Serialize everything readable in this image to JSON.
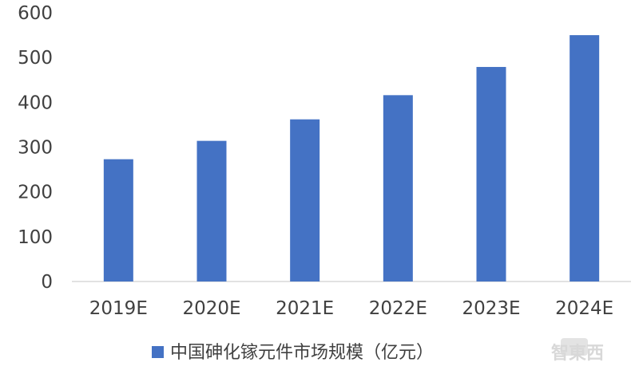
{
  "chart_data": {
    "type": "bar",
    "categories": [
      "2019E",
      "2020E",
      "2021E",
      "2022E",
      "2023E",
      "2024E"
    ],
    "series": [
      {
        "name": "中国砷化镓元件市场规模（亿元）",
        "values": [
          273,
          314,
          362,
          416,
          479,
          550
        ],
        "color": "#4472C4"
      }
    ],
    "ylim": [
      0,
      600
    ],
    "yticks": [
      "0",
      "100",
      "200",
      "300",
      "400",
      "500",
      "600"
    ],
    "grid": false,
    "legend_position": "bottom"
  },
  "watermark": {
    "text": "智東西"
  }
}
